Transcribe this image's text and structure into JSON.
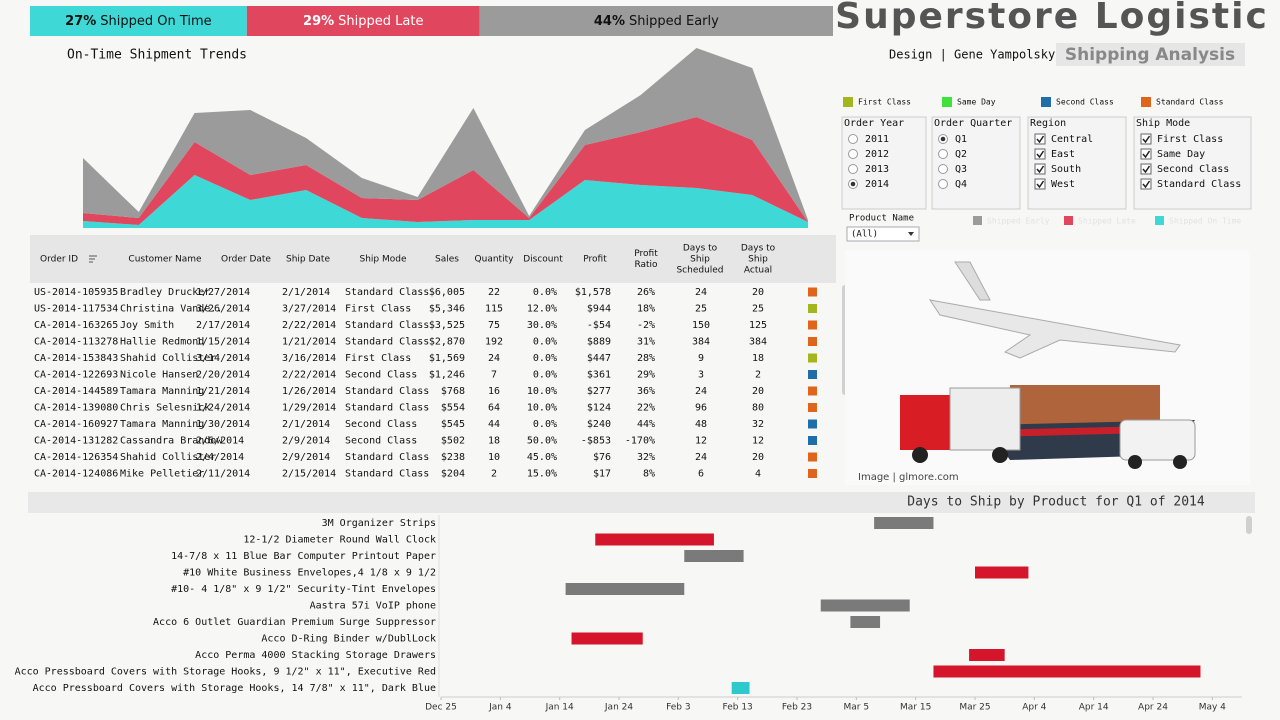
{
  "kpis": [
    {
      "value": 27,
      "value_label": "27%",
      "label": "Shipped On Time",
      "color": "#3ed9d6"
    },
    {
      "value": 29,
      "value_label": "29%",
      "label": "Shipped Late",
      "color": "#e0475e"
    },
    {
      "value": 44,
      "value_label": "44%",
      "label": "Shipped Early",
      "color": "#9b9b9b"
    }
  ],
  "header": {
    "title": "Superstore Logistic",
    "credit": "Design | Gene Yampolsky |",
    "subtitle": "Shipping Analysis"
  },
  "ship_mode_legend": [
    {
      "name": "First Class",
      "color": "#a5b51e"
    },
    {
      "name": "Same Day",
      "color": "#3fe23a"
    },
    {
      "name": "Second Class",
      "color": "#1f6ea8"
    },
    {
      "name": "Standard Class",
      "color": "#e0651c"
    }
  ],
  "filters": [
    {
      "title": "Order Year",
      "kind": "radio",
      "options": [
        "2011",
        "2012",
        "2013",
        "2014"
      ],
      "selected": 3
    },
    {
      "title": "Order Quarter",
      "kind": "radio",
      "options": [
        "Q1",
        "Q2",
        "Q3",
        "Q4"
      ],
      "selected": 0
    },
    {
      "title": "Region",
      "kind": "check",
      "options": [
        "Central",
        "East",
        "South",
        "West"
      ],
      "checked": [
        true,
        true,
        true,
        true
      ]
    },
    {
      "title": "Ship Mode",
      "kind": "check",
      "options": [
        "First Class",
        "Same Day",
        "Second Class",
        "Standard Class"
      ],
      "checked": [
        true,
        true,
        true,
        true
      ]
    }
  ],
  "product_filter": {
    "label": "Product Name",
    "value": "(All)"
  },
  "trend_chart": {
    "type": "area",
    "title": "On-Time Shipment Trends",
    "ylim": [
      0,
      180
    ],
    "series": [
      {
        "name": "Shipped On Time",
        "color": "#3ed9d6",
        "values": [
          7,
          3,
          53,
          28,
          38,
          10,
          6,
          8,
          8,
          48,
          43,
          40,
          33,
          6
        ]
      },
      {
        "name": "Shipped Late",
        "color": "#e0475e",
        "values": [
          8,
          7,
          33,
          25,
          25,
          20,
          22,
          50,
          2,
          35,
          53,
          71,
          55,
          0
        ]
      },
      {
        "name": "Shipped Early",
        "color": "#9b9b9b",
        "values": [
          55,
          6,
          29,
          65,
          27,
          20,
          3,
          62,
          2,
          15,
          37,
          69,
          72,
          2
        ]
      }
    ]
  },
  "table": {
    "columns": [
      [
        "Order ID"
      ],
      [
        "Customer Name"
      ],
      [
        "Order Date"
      ],
      [
        "Ship Date"
      ],
      [
        "Ship Mode"
      ],
      [
        "Sales"
      ],
      [
        "Quantity"
      ],
      [
        "Discount"
      ],
      [
        "Profit"
      ],
      [
        "Profit",
        "Ratio"
      ],
      [
        "Days to",
        "Ship",
        "Scheduled"
      ],
      [
        "Days to",
        "Ship",
        "Actual"
      ]
    ],
    "rows": [
      [
        "US-2014-105935",
        "Bradley Drucker",
        "1/27/2014",
        "2/1/2014",
        "Standard Class",
        "$6,005",
        "22",
        "0.0%",
        "$1,578",
        "26%",
        "24",
        "20"
      ],
      [
        "US-2014-117534",
        "Christina Vande..",
        "3/26/2014",
        "3/27/2014",
        "First Class",
        "$5,346",
        "115",
        "12.0%",
        "$944",
        "18%",
        "25",
        "25"
      ],
      [
        "CA-2014-163265",
        "Joy Smith",
        "2/17/2014",
        "2/22/2014",
        "Standard Class",
        "$3,525",
        "75",
        "30.0%",
        "-$54",
        "-2%",
        "150",
        "125"
      ],
      [
        "CA-2014-113278",
        "Hallie Redmond",
        "1/15/2014",
        "1/21/2014",
        "Standard Class",
        "$2,870",
        "192",
        "0.0%",
        "$889",
        "31%",
        "384",
        "384"
      ],
      [
        "CA-2014-153843",
        "Shahid Collister",
        "3/14/2014",
        "3/16/2014",
        "First Class",
        "$1,569",
        "24",
        "0.0%",
        "$447",
        "28%",
        "9",
        "18"
      ],
      [
        "CA-2014-122693",
        "Nicole Hansen",
        "2/20/2014",
        "2/22/2014",
        "Second Class",
        "$1,246",
        "7",
        "0.0%",
        "$361",
        "29%",
        "3",
        "2"
      ],
      [
        "CA-2014-144589",
        "Tamara Manning",
        "1/21/2014",
        "1/26/2014",
        "Standard Class",
        "$768",
        "16",
        "10.0%",
        "$277",
        "36%",
        "24",
        "20"
      ],
      [
        "CA-2014-139080",
        "Chris Selesnick",
        "1/24/2014",
        "1/29/2014",
        "Standard Class",
        "$554",
        "64",
        "10.0%",
        "$124",
        "22%",
        "96",
        "80"
      ],
      [
        "CA-2014-160927",
        "Tamara Manning",
        "1/30/2014",
        "2/1/2014",
        "Second Class",
        "$545",
        "44",
        "0.0%",
        "$240",
        "44%",
        "48",
        "32"
      ],
      [
        "CA-2014-131282",
        "Cassandra Brandow",
        "2/6/2014",
        "2/9/2014",
        "Second Class",
        "$502",
        "18",
        "50.0%",
        "-$853",
        "-170%",
        "12",
        "12"
      ],
      [
        "CA-2014-126354",
        "Shahid Collister",
        "2/4/2014",
        "2/9/2014",
        "Standard Class",
        "$238",
        "10",
        "45.0%",
        "$76",
        "32%",
        "24",
        "20"
      ],
      [
        "CA-2014-124086",
        "Mike Pelletier",
        "2/11/2014",
        "2/15/2014",
        "Standard Class",
        "$204",
        "2",
        "15.0%",
        "$17",
        "8%",
        "6",
        "4"
      ]
    ]
  },
  "image_caption": "Image | glmore.com",
  "gantt_chart": {
    "type": "gantt",
    "title": "Days to Ship by Product for Q1 of 2014",
    "xlim": [
      -7,
      128
    ],
    "xticks": [
      {
        "value": -7,
        "label": "Dec 25"
      },
      {
        "value": 3,
        "label": "Jan 4"
      },
      {
        "value": 13,
        "label": "Jan 14"
      },
      {
        "value": 23,
        "label": "Jan 24"
      },
      {
        "value": 33,
        "label": "Feb 3"
      },
      {
        "value": 43,
        "label": "Feb 13"
      },
      {
        "value": 53,
        "label": "Feb 23"
      },
      {
        "value": 63,
        "label": "Mar 5"
      },
      {
        "value": 73,
        "label": "Mar 15"
      },
      {
        "value": 83,
        "label": "Mar 25"
      },
      {
        "value": 93,
        "label": "Apr 4"
      },
      {
        "value": 103,
        "label": "Apr 14"
      },
      {
        "value": 113,
        "label": "Apr 24"
      },
      {
        "value": 123,
        "label": "May 4"
      }
    ],
    "rows": [
      {
        "name": "3M Organizer Strips",
        "start": 66,
        "end": 76,
        "color": "#7a7a7a"
      },
      {
        "name": "12-1/2 Diameter Round Wall Clock",
        "start": 19,
        "end": 39,
        "color": "#d4152b"
      },
      {
        "name": "14-7/8 x 11 Blue Bar Computer Printout Paper",
        "start": 34,
        "end": 44,
        "color": "#7a7a7a"
      },
      {
        "name": "#10 White Business Envelopes,4 1/8 x 9 1/2",
        "start": 83,
        "end": 92,
        "color": "#d4152b"
      },
      {
        "name": "#10- 4 1/8\" x 9 1/2\" Security-Tint Envelopes",
        "start": 14,
        "end": 34,
        "color": "#7a7a7a"
      },
      {
        "name": "Aastra 57i VoIP phone",
        "start": 57,
        "end": 72,
        "color": "#7a7a7a"
      },
      {
        "name": "Acco 6 Outlet Guardian Premium Surge Suppressor",
        "start": 62,
        "end": 67,
        "color": "#7a7a7a"
      },
      {
        "name": "Acco D-Ring Binder w/DublLock",
        "start": 15,
        "end": 27,
        "color": "#d4152b"
      },
      {
        "name": "Acco Perma 4000 Stacking Storage Drawers",
        "start": 82,
        "end": 88,
        "color": "#d4152b"
      },
      {
        "name": "Acco Pressboard Covers with Storage Hooks, 9 1/2\" x 11\", Executive Red",
        "start": 76,
        "end": 121,
        "color": "#d4152b"
      },
      {
        "name": "Acco Pressboard Covers with Storage Hooks, 14 7/8\" x 11\", Dark Blue",
        "start": 42,
        "end": 45,
        "color": "#2ec9cc"
      }
    ]
  }
}
